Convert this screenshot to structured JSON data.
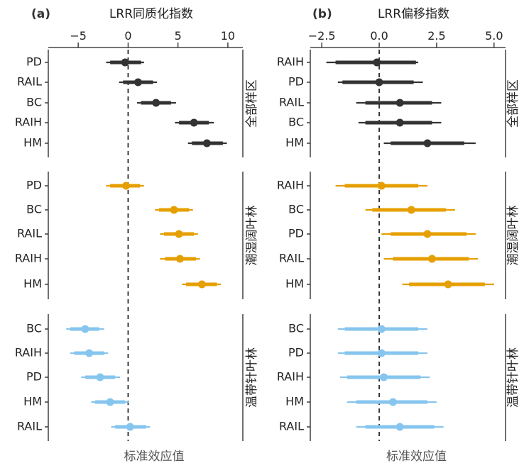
{
  "chart_data": [
    {
      "type": "forest",
      "panel_label": "(a)",
      "title": "LRR同质化指数",
      "xlabel": "标准效应值",
      "xlim": [
        -8,
        11.5
      ],
      "xticks": [
        -5,
        0,
        5,
        10
      ],
      "xtick_labels": [
        "−5",
        "0",
        "5",
        "10"
      ],
      "reference_line": 0,
      "groups": [
        {
          "name": "全部样区",
          "color": "#333333",
          "rows": [
            {
              "label": "PD",
              "estimate": -0.3,
              "ci_inner": [
                -1.8,
                1.3
              ],
              "ci_outer": [
                -2.2,
                1.6
              ]
            },
            {
              "label": "RAIL",
              "estimate": 1.0,
              "ci_inner": [
                -0.5,
                2.5
              ],
              "ci_outer": [
                -0.9,
                2.9
              ]
            },
            {
              "label": "BC",
              "estimate": 2.8,
              "ci_inner": [
                1.3,
                4.3
              ],
              "ci_outer": [
                0.9,
                4.8
              ]
            },
            {
              "label": "RAIH",
              "estimate": 6.6,
              "ci_inner": [
                5.1,
                8.1
              ],
              "ci_outer": [
                4.7,
                8.6
              ]
            },
            {
              "label": "HM",
              "estimate": 7.9,
              "ci_inner": [
                6.4,
                9.5
              ],
              "ci_outer": [
                6.0,
                9.9
              ]
            }
          ]
        },
        {
          "name": "潮湿阔叶林",
          "color": "#E69F00",
          "rows": [
            {
              "label": "PD",
              "estimate": -0.2,
              "ci_inner": [
                -1.8,
                1.2
              ],
              "ci_outer": [
                -2.2,
                1.6
              ]
            },
            {
              "label": "BC",
              "estimate": 4.6,
              "ci_inner": [
                3.1,
                6.1
              ],
              "ci_outer": [
                2.7,
                6.5
              ]
            },
            {
              "label": "RAIL",
              "estimate": 5.1,
              "ci_inner": [
                3.6,
                6.6
              ],
              "ci_outer": [
                3.2,
                7.0
              ]
            },
            {
              "label": "RAIH",
              "estimate": 5.2,
              "ci_inner": [
                3.7,
                6.8
              ],
              "ci_outer": [
                3.2,
                7.2
              ]
            },
            {
              "label": "HM",
              "estimate": 7.4,
              "ci_inner": [
                5.8,
                8.9
              ],
              "ci_outer": [
                5.4,
                9.3
              ]
            }
          ]
        },
        {
          "name": "温带针叶林",
          "color": "#86C5EE",
          "rows": [
            {
              "label": "BC",
              "estimate": -4.3,
              "ci_inner": [
                -5.8,
                -2.9
              ],
              "ci_outer": [
                -6.2,
                -2.4
              ]
            },
            {
              "label": "RAIH",
              "estimate": -3.9,
              "ci_inner": [
                -5.4,
                -2.4
              ],
              "ci_outer": [
                -5.8,
                -2.0
              ]
            },
            {
              "label": "PD",
              "estimate": -2.8,
              "ci_inner": [
                -4.3,
                -1.3
              ],
              "ci_outer": [
                -4.7,
                -0.8
              ]
            },
            {
              "label": "HM",
              "estimate": -1.8,
              "ci_inner": [
                -3.3,
                -0.3
              ],
              "ci_outer": [
                -3.7,
                0.1
              ]
            },
            {
              "label": "RAIL",
              "estimate": 0.2,
              "ci_inner": [
                -1.3,
                1.8
              ],
              "ci_outer": [
                -1.7,
                2.2
              ]
            }
          ]
        }
      ]
    },
    {
      "type": "forest",
      "panel_label": "(b)",
      "title": "LRR偏移指数",
      "xlabel": "标准效应值",
      "xlim": [
        -3.0,
        5.5
      ],
      "xticks": [
        -2.5,
        0.0,
        2.5,
        5.0
      ],
      "xtick_labels": [
        "−2.5",
        "0.0",
        "2.5",
        "5.0"
      ],
      "reference_line": 0,
      "groups": [
        {
          "name": "全部样区",
          "color": "#333333",
          "rows": [
            {
              "label": "RAIH",
              "estimate": -0.1,
              "ci_inner": [
                -1.9,
                1.6
              ],
              "ci_outer": [
                -2.3,
                1.7
              ]
            },
            {
              "label": "PD",
              "estimate": 0.0,
              "ci_inner": [
                -1.6,
                1.5
              ],
              "ci_outer": [
                -1.8,
                1.9
              ]
            },
            {
              "label": "RAIL",
              "estimate": 0.9,
              "ci_inner": [
                -0.6,
                2.3
              ],
              "ci_outer": [
                -1.0,
                2.7
              ]
            },
            {
              "label": "BC",
              "estimate": 0.9,
              "ci_inner": [
                -0.6,
                2.3
              ],
              "ci_outer": [
                -0.9,
                2.7
              ]
            },
            {
              "label": "HM",
              "estimate": 2.1,
              "ci_inner": [
                0.5,
                3.7
              ],
              "ci_outer": [
                0.2,
                4.2
              ]
            }
          ]
        },
        {
          "name": "潮湿阔叶林",
          "color": "#E69F00",
          "rows": [
            {
              "label": "RAIH",
              "estimate": 0.1,
              "ci_inner": [
                -1.5,
                1.7
              ],
              "ci_outer": [
                -1.9,
                2.1
              ]
            },
            {
              "label": "BC",
              "estimate": 1.4,
              "ci_inner": [
                -0.3,
                2.9
              ],
              "ci_outer": [
                -0.6,
                3.3
              ]
            },
            {
              "label": "PD",
              "estimate": 2.1,
              "ci_inner": [
                0.5,
                3.8
              ],
              "ci_outer": [
                0.1,
                4.2
              ]
            },
            {
              "label": "RAIL",
              "estimate": 2.3,
              "ci_inner": [
                0.6,
                3.9
              ],
              "ci_outer": [
                0.2,
                4.3
              ]
            },
            {
              "label": "HM",
              "estimate": 3.0,
              "ci_inner": [
                1.3,
                4.6
              ],
              "ci_outer": [
                1.0,
                5.0
              ]
            }
          ]
        },
        {
          "name": "温带针叶林",
          "color": "#86C5EE",
          "rows": [
            {
              "label": "BC",
              "estimate": 0.1,
              "ci_inner": [
                -1.5,
                1.7
              ],
              "ci_outer": [
                -1.8,
                2.1
              ]
            },
            {
              "label": "PD",
              "estimate": 0.1,
              "ci_inner": [
                -1.5,
                1.7
              ],
              "ci_outer": [
                -1.8,
                2.1
              ]
            },
            {
              "label": "RAIH",
              "estimate": 0.2,
              "ci_inner": [
                -1.4,
                1.8
              ],
              "ci_outer": [
                -1.7,
                2.2
              ]
            },
            {
              "label": "HM",
              "estimate": 0.6,
              "ci_inner": [
                -1.0,
                2.1
              ],
              "ci_outer": [
                -1.4,
                2.5
              ]
            },
            {
              "label": "RAIL",
              "estimate": 0.9,
              "ci_inner": [
                -0.6,
                2.4
              ],
              "ci_outer": [
                -1.0,
                2.8
              ]
            }
          ]
        }
      ]
    }
  ]
}
